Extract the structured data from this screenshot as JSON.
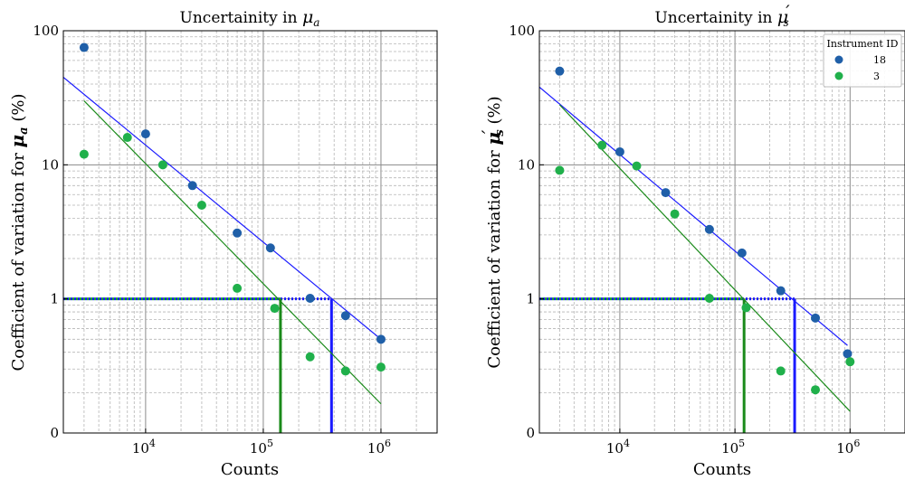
{
  "chart_data": [
    {
      "type": "scatter",
      "title": "Uncertainity in",
      "title_symbol": "μ",
      "title_sub": "a",
      "xlabel": "Counts",
      "ylabel": "Coefficient of variation for",
      "ylabel_symbol": "μ",
      "ylabel_sub": "a",
      "ylabel_unit": "(%)",
      "xscale": "log",
      "yscale": "log",
      "xlim": [
        2000,
        3000000
      ],
      "ylim": [
        0.1,
        100
      ],
      "xticks": [
        {
          "value": 10000,
          "base": "10",
          "exp": "4"
        },
        {
          "value": 100000,
          "base": "10",
          "exp": "5"
        },
        {
          "value": 1000000,
          "base": "10",
          "exp": "6"
        }
      ],
      "yticks": [
        {
          "value": 0.1,
          "label": "0"
        },
        {
          "value": 1,
          "label": "1"
        },
        {
          "value": 10,
          "label": "10"
        },
        {
          "value": 100,
          "label": "100"
        }
      ],
      "grid": true,
      "threshold": 1,
      "series": [
        {
          "name": "18",
          "color": "#1f5fa8",
          "x": [
            3000,
            10000,
            25000,
            60000,
            115000,
            250000,
            500000,
            1000000
          ],
          "y": [
            75,
            17,
            7,
            3.1,
            2.4,
            1.01,
            0.75,
            0.5
          ],
          "fit": {
            "x": [
              2000,
              1000000
            ],
            "y": [
              45,
              0.5
            ]
          },
          "line_color": "#1a1aff",
          "crossing": 380000
        },
        {
          "name": "3",
          "color": "#20b04b",
          "x": [
            3000,
            7000,
            14000,
            30000,
            60000,
            125000,
            250000,
            500000,
            1000000
          ],
          "y": [
            12,
            16,
            10,
            5,
            1.2,
            0.85,
            0.37,
            0.29,
            0.31
          ],
          "fit": {
            "x": [
              3000,
              1000000
            ],
            "y": [
              30,
              0.165
            ]
          },
          "line_color": "#1a8a1a",
          "crossing": 140000
        }
      ]
    },
    {
      "type": "scatter",
      "title": "Uncertainity in",
      "title_symbol": "μ",
      "title_sub": "s",
      "title_prime": "′",
      "xlabel": "Counts",
      "ylabel": "Coefficient of variation for",
      "ylabel_symbol": "μ",
      "ylabel_sub": "s",
      "ylabel_prime": "′",
      "ylabel_unit": "(%)",
      "xscale": "log",
      "yscale": "log",
      "xlim": [
        2000,
        3000000
      ],
      "ylim": [
        0.1,
        100
      ],
      "xticks": [
        {
          "value": 10000,
          "base": "10",
          "exp": "4"
        },
        {
          "value": 100000,
          "base": "10",
          "exp": "5"
        },
        {
          "value": 1000000,
          "base": "10",
          "exp": "6"
        }
      ],
      "yticks": [
        {
          "value": 0.1,
          "label": "0"
        },
        {
          "value": 1,
          "label": "1"
        },
        {
          "value": 10,
          "label": "10"
        },
        {
          "value": 100,
          "label": "100"
        }
      ],
      "grid": true,
      "threshold": 1,
      "legend": {
        "title": "Instrument ID",
        "placement": "top-right"
      },
      "series": [
        {
          "name": "18",
          "color": "#1f5fa8",
          "x": [
            3000,
            10000,
            25000,
            60000,
            115000,
            250000,
            500000,
            950000
          ],
          "y": [
            50,
            12.5,
            6.2,
            3.3,
            2.2,
            1.15,
            0.72,
            0.39
          ],
          "fit": {
            "x": [
              2000,
              950000
            ],
            "y": [
              38,
              0.45
            ]
          },
          "line_color": "#1a1aff",
          "crossing": 330000
        },
        {
          "name": "3",
          "color": "#20b04b",
          "x": [
            3000,
            7000,
            14000,
            30000,
            60000,
            125000,
            250000,
            500000,
            1000000
          ],
          "y": [
            9.1,
            14,
            9.8,
            4.3,
            1.01,
            0.86,
            0.29,
            0.21,
            0.34
          ],
          "fit": {
            "x": [
              3000,
              1000000
            ],
            "y": [
              28,
              0.145
            ]
          },
          "line_color": "#1a8a1a",
          "crossing": 120000
        }
      ]
    }
  ]
}
